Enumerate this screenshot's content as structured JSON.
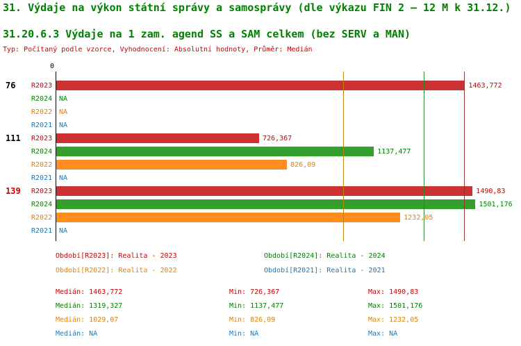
{
  "title": "31. Výdaje na výkon státní správy a samosprávy (dle výkazu FIN 2 – 12 M k 31.12.)",
  "subtitle": "31.20.6.3 Výdaje na 1 zam. agend SS a SAM celkem (bez SERV a MAN)",
  "meta": "Typ: Počítaný podle vzorce, Vyhodnocení: Absolutní hodnoty, Průměr: Medián",
  "colors": {
    "title": "#008000",
    "axis": "#000000",
    "r2023_bar": "#cc3232",
    "r2023_text": "#cc0000",
    "r2023_median": "#993333",
    "r2024_bar": "#33a02c",
    "r2024_text": "#008000",
    "r2024_median": "#2e8b2e",
    "r2022_bar": "#ff8c1e",
    "r2022_text": "#e68000",
    "r2022_median": "#b8860b",
    "r2021_text": "#1f77b4"
  },
  "chart_data": {
    "type": "bar",
    "orientation": "horizontal",
    "x_origin_label": "0",
    "xlim": [
      0,
      1505
    ],
    "xmax": 1505,
    "series_order": [
      "R2023",
      "R2024",
      "R2022",
      "R2021"
    ],
    "groups": [
      {
        "label": "76",
        "label_color": "#000000",
        "rows": [
          {
            "series": "R2023",
            "value": 1463.772,
            "display": "1463,772"
          },
          {
            "series": "R2024",
            "value": null,
            "display": "NA"
          },
          {
            "series": "R2022",
            "value": null,
            "display": "NA"
          },
          {
            "series": "R2021",
            "value": null,
            "display": "NA"
          }
        ]
      },
      {
        "label": "111",
        "label_color": "#000000",
        "rows": [
          {
            "series": "R2023",
            "value": 726.367,
            "display": "726,367"
          },
          {
            "series": "R2024",
            "value": 1137.477,
            "display": "1137,477"
          },
          {
            "series": "R2022",
            "value": 826.09,
            "display": "826,09"
          },
          {
            "series": "R2021",
            "value": null,
            "display": "NA"
          }
        ]
      },
      {
        "label": "139",
        "label_color": "#cc0000",
        "rows": [
          {
            "series": "R2023",
            "value": 1490.83,
            "display": "1490,83"
          },
          {
            "series": "R2024",
            "value": 1501.176,
            "display": "1501,176"
          },
          {
            "series": "R2022",
            "value": 1232.05,
            "display": "1232,05"
          },
          {
            "series": "R2021",
            "value": null,
            "display": "NA"
          }
        ]
      }
    ],
    "median_lines": [
      {
        "series": "R2023",
        "value": 1463.772
      },
      {
        "series": "R2024",
        "value": 1319.327
      },
      {
        "series": "R2022",
        "value": 1029.07
      }
    ]
  },
  "legend": [
    {
      "series": "R2023",
      "text": "Období[R2023]: Realita - 2023"
    },
    {
      "series": "R2024",
      "text": "Období[R2024]: Realita - 2024"
    },
    {
      "series": "R2022",
      "text": "Období[R2022]: Realita - 2022"
    },
    {
      "series": "R2021",
      "text": "Období[R2021]: Realita - 2021"
    }
  ],
  "stats": [
    {
      "series": "R2023",
      "median": "Medián: 1463,772",
      "min": "Min: 726,367",
      "max": "Max: 1490,83"
    },
    {
      "series": "R2024",
      "median": "Medián: 1319,327",
      "min": "Min: 1137,477",
      "max": "Max: 1501,176"
    },
    {
      "series": "R2022",
      "median": "Medián: 1029,07",
      "min": "Min: 826,09",
      "max": "Max: 1232,05"
    },
    {
      "series": "R2021",
      "median": "Medián: NA",
      "min": "Min: NA",
      "max": "Max: NA"
    }
  ]
}
